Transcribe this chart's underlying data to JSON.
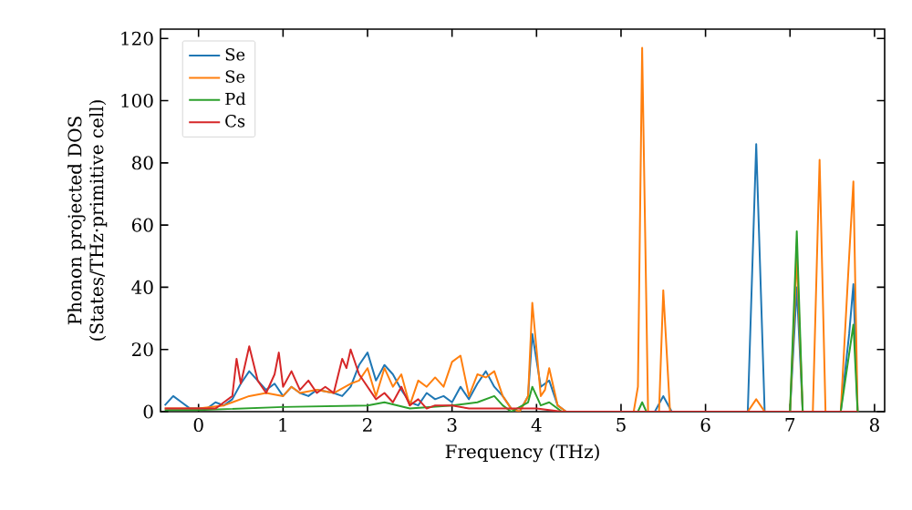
{
  "chart_data": {
    "type": "line",
    "xlabel": "Frequency (THz)",
    "ylabel": "Phonon projected DOS\n(States/THz·primitive cell)",
    "xlim": [
      -0.45,
      8.12
    ],
    "ylim": [
      0,
      123
    ],
    "xticks": [
      0,
      1,
      2,
      3,
      4,
      5,
      6,
      7,
      8
    ],
    "yticks": [
      0,
      20,
      40,
      60,
      80,
      100,
      120
    ],
    "legend": "top left",
    "grid": false,
    "marker": "none",
    "line_style": "solid",
    "series": [
      {
        "name": "Se",
        "color": "#1f77b4",
        "x": [
          -0.4,
          -0.3,
          -0.2,
          -0.1,
          0,
          0.1,
          0.2,
          0.3,
          0.4,
          0.5,
          0.6,
          0.7,
          0.8,
          0.9,
          1.0,
          1.1,
          1.2,
          1.3,
          1.4,
          1.5,
          1.6,
          1.7,
          1.8,
          1.9,
          2.0,
          2.1,
          2.2,
          2.3,
          2.4,
          2.5,
          2.6,
          2.7,
          2.8,
          2.9,
          3.0,
          3.1,
          3.2,
          3.3,
          3.4,
          3.5,
          3.6,
          3.7,
          3.8,
          3.9,
          3.95,
          4.05,
          4.15,
          4.25,
          4.35,
          5.4,
          5.5,
          5.6,
          6.5,
          6.6,
          6.7,
          7.0,
          7.08,
          7.15,
          7.6,
          7.7,
          7.75,
          7.8
        ],
        "values": [
          2,
          5,
          3,
          1,
          1,
          1,
          3,
          2,
          4,
          9,
          13,
          10,
          7,
          9,
          5,
          8,
          6,
          5,
          7,
          null,
          6,
          5,
          8,
          15,
          19,
          10,
          15,
          12,
          7,
          3,
          2,
          6,
          4,
          5,
          3,
          8,
          4,
          9,
          13,
          8,
          5,
          1,
          0,
          5,
          25,
          8,
          10,
          2,
          0,
          0,
          5,
          0,
          0,
          86,
          0,
          0,
          40,
          0,
          0,
          25,
          41,
          0
        ]
      },
      {
        "name": "Se",
        "color": "#ff7f0e",
        "x": [
          -0.4,
          0,
          0.3,
          0.4,
          0.6,
          0.8,
          1.0,
          1.1,
          1.2,
          1.4,
          1.6,
          1.8,
          1.9,
          2.0,
          2.1,
          2.2,
          2.3,
          2.4,
          2.5,
          2.6,
          2.7,
          2.8,
          2.9,
          3.0,
          3.1,
          3.2,
          3.3,
          3.4,
          3.5,
          3.6,
          3.7,
          3.8,
          3.9,
          3.95,
          4.05,
          4.1,
          4.15,
          4.25,
          4.35,
          5.15,
          5.2,
          5.25,
          5.32,
          5.45,
          5.5,
          5.58,
          6.5,
          6.6,
          6.7,
          7.0,
          7.08,
          7.15,
          7.27,
          7.35,
          7.42,
          7.6,
          7.7,
          7.75,
          7.8
        ],
        "values": [
          1,
          1,
          2,
          3,
          5,
          6,
          5,
          8,
          6,
          7,
          6,
          9,
          10,
          14,
          5,
          14,
          8,
          12,
          2,
          10,
          8,
          11,
          8,
          16,
          18,
          5,
          12,
          11,
          13,
          5,
          1,
          0,
          5,
          35,
          5,
          7,
          14,
          2,
          0,
          0,
          8,
          117,
          0,
          0,
          39,
          0,
          0,
          4,
          0,
          0,
          50,
          0,
          0,
          81,
          0,
          0,
          50,
          74,
          0
        ]
      },
      {
        "name": "Pd",
        "color": "#2ca02c",
        "x": [
          -0.4,
          0,
          1.0,
          2.0,
          2.2,
          2.5,
          3.0,
          3.3,
          3.5,
          3.6,
          3.7,
          3.9,
          3.95,
          4.05,
          4.15,
          4.3,
          5.2,
          5.25,
          5.3,
          7.0,
          7.08,
          7.15,
          7.6,
          7.75,
          7.8
        ],
        "values": [
          0.5,
          0.5,
          1.5,
          2,
          3,
          1,
          2,
          3,
          5,
          2,
          0,
          3,
          8,
          2,
          3,
          0,
          0,
          3,
          0,
          0,
          58,
          0,
          0,
          28,
          0
        ]
      },
      {
        "name": "Cs",
        "color": "#d62728",
        "x": [
          -0.4,
          0.2,
          0.3,
          0.4,
          0.45,
          0.5,
          0.6,
          0.7,
          0.8,
          0.9,
          0.95,
          1.0,
          1.1,
          1.2,
          1.3,
          1.4,
          1.5,
          1.6,
          1.7,
          1.75,
          1.8,
          1.9,
          2.0,
          2.1,
          2.2,
          2.3,
          2.4,
          2.5,
          2.6,
          2.7,
          2.8,
          3.0,
          3.2,
          3.5,
          4.0,
          4.3,
          7.8
        ],
        "values": [
          1,
          1,
          3,
          5,
          17,
          9,
          21,
          10,
          6,
          12,
          19,
          8,
          13,
          7,
          10,
          6,
          8,
          6,
          17,
          14,
          20,
          12,
          8,
          4,
          6,
          3,
          8,
          2,
          4,
          1,
          2,
          2,
          1,
          1,
          1,
          0,
          0
        ]
      }
    ]
  }
}
